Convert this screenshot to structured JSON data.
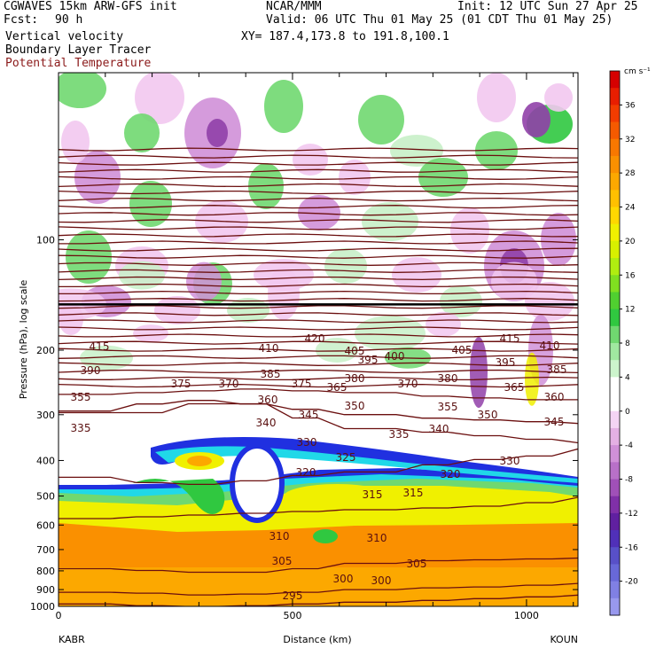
{
  "header": {
    "model": "CGWAVES 15km ARW-GFS init",
    "center": "NCAR/MMM",
    "init": "Init: 12 UTC Sun 27 Apr 25",
    "fcst_label": "Fcst:",
    "fcst_value": "90 h",
    "valid": "Valid: 06 UTC Thu 01 May 25 (01 CDT Thu 01 May 25)",
    "field1": "Vertical velocity",
    "field2": "Boundary Layer Tracer",
    "field3": "Potential Temperature",
    "xy": "XY= 187.4,173.8 to 191.8,100.1"
  },
  "chart_data": {
    "type": "heatmap",
    "xlabel": "Distance (km)",
    "ylabel": "Pressure (hPa), log scale",
    "xlim": [
      0,
      1110
    ],
    "ylim": [
      1000,
      35
    ],
    "y_scale": "log",
    "x_ticks": [
      0,
      500,
      1000
    ],
    "y_ticks": [
      100,
      200,
      300,
      400,
      500,
      600,
      700,
      800,
      900,
      1000
    ],
    "endpoints": {
      "left": "KABR",
      "right": "KOUN"
    },
    "colorbar": {
      "units": "cm s⁻¹",
      "labels": [
        36,
        32,
        28,
        24,
        20,
        16,
        12,
        8,
        4,
        0,
        -4,
        -8,
        -12,
        -16,
        -20
      ],
      "colors": [
        "#d60000",
        "#e81e00",
        "#f23c00",
        "#f55a00",
        "#f87800",
        "#fa9000",
        "#fca800",
        "#ffc000",
        "#ffd800",
        "#f0f000",
        "#d8f000",
        "#b0ee10",
        "#80e020",
        "#50d030",
        "#30c840",
        "#70d870",
        "#a0e8a0",
        "#ccf4cc",
        "#ffffff",
        "#ffffff",
        "#f4d4f4",
        "#e4b0e4",
        "#d090d8",
        "#b870c8",
        "#a050b8",
        "#8030a8",
        "#6020a0",
        "#5030b8",
        "#5850c8",
        "#6868d8",
        "#8080e4",
        "#9898ee"
      ]
    },
    "contour_labels": [
      295,
      300,
      305,
      310,
      315,
      320,
      325,
      330,
      335,
      340,
      345,
      350,
      355,
      360,
      365,
      370,
      375,
      380,
      385,
      390,
      395,
      400,
      405,
      410,
      415,
      420
    ]
  }
}
